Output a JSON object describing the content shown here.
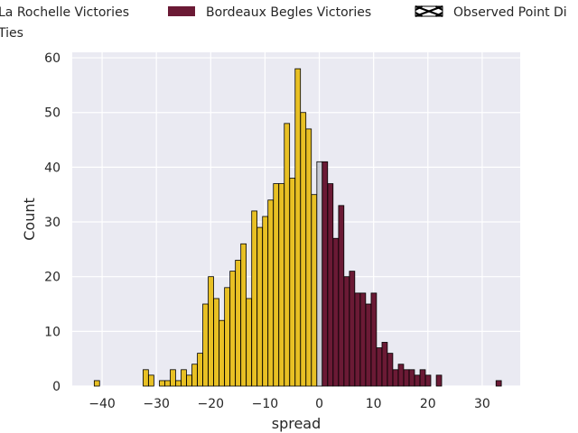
{
  "chart_data": {
    "type": "bar",
    "title": "",
    "xlabel": "spread",
    "ylabel": "Count",
    "xlim": [
      -45.5,
      37
    ],
    "ylim": [
      0,
      61
    ],
    "xticks": [
      -40,
      -30,
      -20,
      -10,
      0,
      10,
      20,
      30
    ],
    "yticks": [
      0,
      10,
      20,
      30,
      40,
      50,
      60
    ],
    "grid": true,
    "legend": {
      "placement": "top",
      "entries": [
        {
          "label": "La Rochelle Victories",
          "color": "#e8c024"
        },
        {
          "label": "Bordeaux Begles Victories",
          "color": "#6b1a35"
        },
        {
          "label": "Observed Point Di",
          "pattern": "hatch-x"
        },
        {
          "label": "Ties",
          "color": "#c8ccd4"
        }
      ]
    },
    "colors": {
      "la_rochelle": "#e8c024",
      "bordeaux": "#6b1a35",
      "tie": "#c8ccd4",
      "background": "#eaeaf2"
    },
    "series": [
      {
        "name": "La Rochelle Victories",
        "x": [
          -41,
          -32,
          -31,
          -30,
          -29,
          -28,
          -27,
          -26,
          -25,
          -24,
          -23,
          -22,
          -21,
          -20,
          -19,
          -18,
          -17,
          -16,
          -15,
          -14,
          -13,
          -12,
          -11,
          -10,
          -9,
          -8,
          -7,
          -6,
          -5,
          -4,
          -3,
          -2,
          -1
        ],
        "values": [
          1,
          3,
          2,
          0,
          1,
          1,
          3,
          1,
          3,
          2,
          4,
          6,
          15,
          20,
          16,
          12,
          18,
          21,
          23,
          26,
          16,
          32,
          29,
          31,
          34,
          37,
          37,
          48,
          38,
          58,
          50,
          47,
          35
        ]
      },
      {
        "name": "Ties",
        "x": [
          0
        ],
        "values": [
          41
        ]
      },
      {
        "name": "Bordeaux Begles Victories",
        "x": [
          1,
          2,
          3,
          4,
          5,
          6,
          7,
          8,
          9,
          10,
          11,
          12,
          13,
          14,
          15,
          16,
          17,
          18,
          19,
          20,
          22,
          33
        ],
        "values": [
          41,
          37,
          27,
          33,
          20,
          21,
          17,
          17,
          15,
          17,
          7,
          8,
          6,
          3,
          4,
          3,
          3,
          2,
          3,
          2,
          2,
          1
        ]
      }
    ]
  }
}
